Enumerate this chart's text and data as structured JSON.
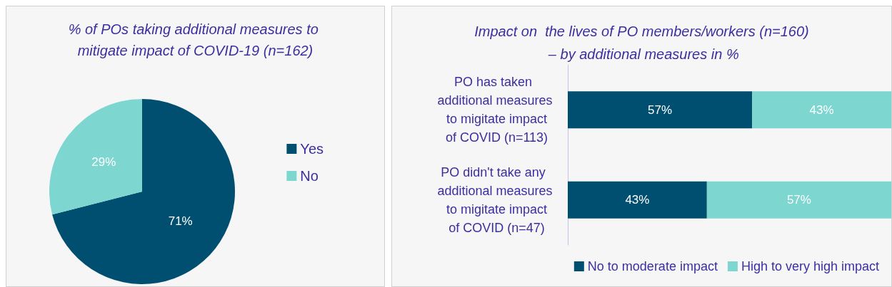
{
  "chart_data": [
    {
      "type": "pie",
      "title": "% of POs taking additional measures to mitigate impact of COVID-19 (n=162)",
      "categories": [
        "Yes",
        "No"
      ],
      "values": [
        71,
        29
      ],
      "colors": [
        "#004f71",
        "#7dd6cf"
      ],
      "value_labels": [
        "71%",
        "29%"
      ],
      "legend": "right"
    },
    {
      "type": "bar",
      "title": "Impact on  the lives of PO members/workers (n=160) – by additional measures in %",
      "orientation": "horizontal",
      "stacked": true,
      "categories": [
        "PO has taken additional measures to migitate impact of COVID (n=113)",
        "PO didn't take any additional measures to migitate impact of COVID (n=47)"
      ],
      "xlim": [
        0,
        100
      ],
      "tick_labels": "y",
      "legend": "bottom",
      "series": [
        {
          "name": "No to moderate impact",
          "color": "#004f71",
          "values": [
            57,
            43
          ],
          "value_labels": [
            "57%",
            "43%"
          ]
        },
        {
          "name": "High to very high impact",
          "color": "#7dd6cf",
          "values": [
            43,
            57
          ],
          "value_labels": [
            "43%",
            "57%"
          ]
        }
      ]
    }
  ]
}
